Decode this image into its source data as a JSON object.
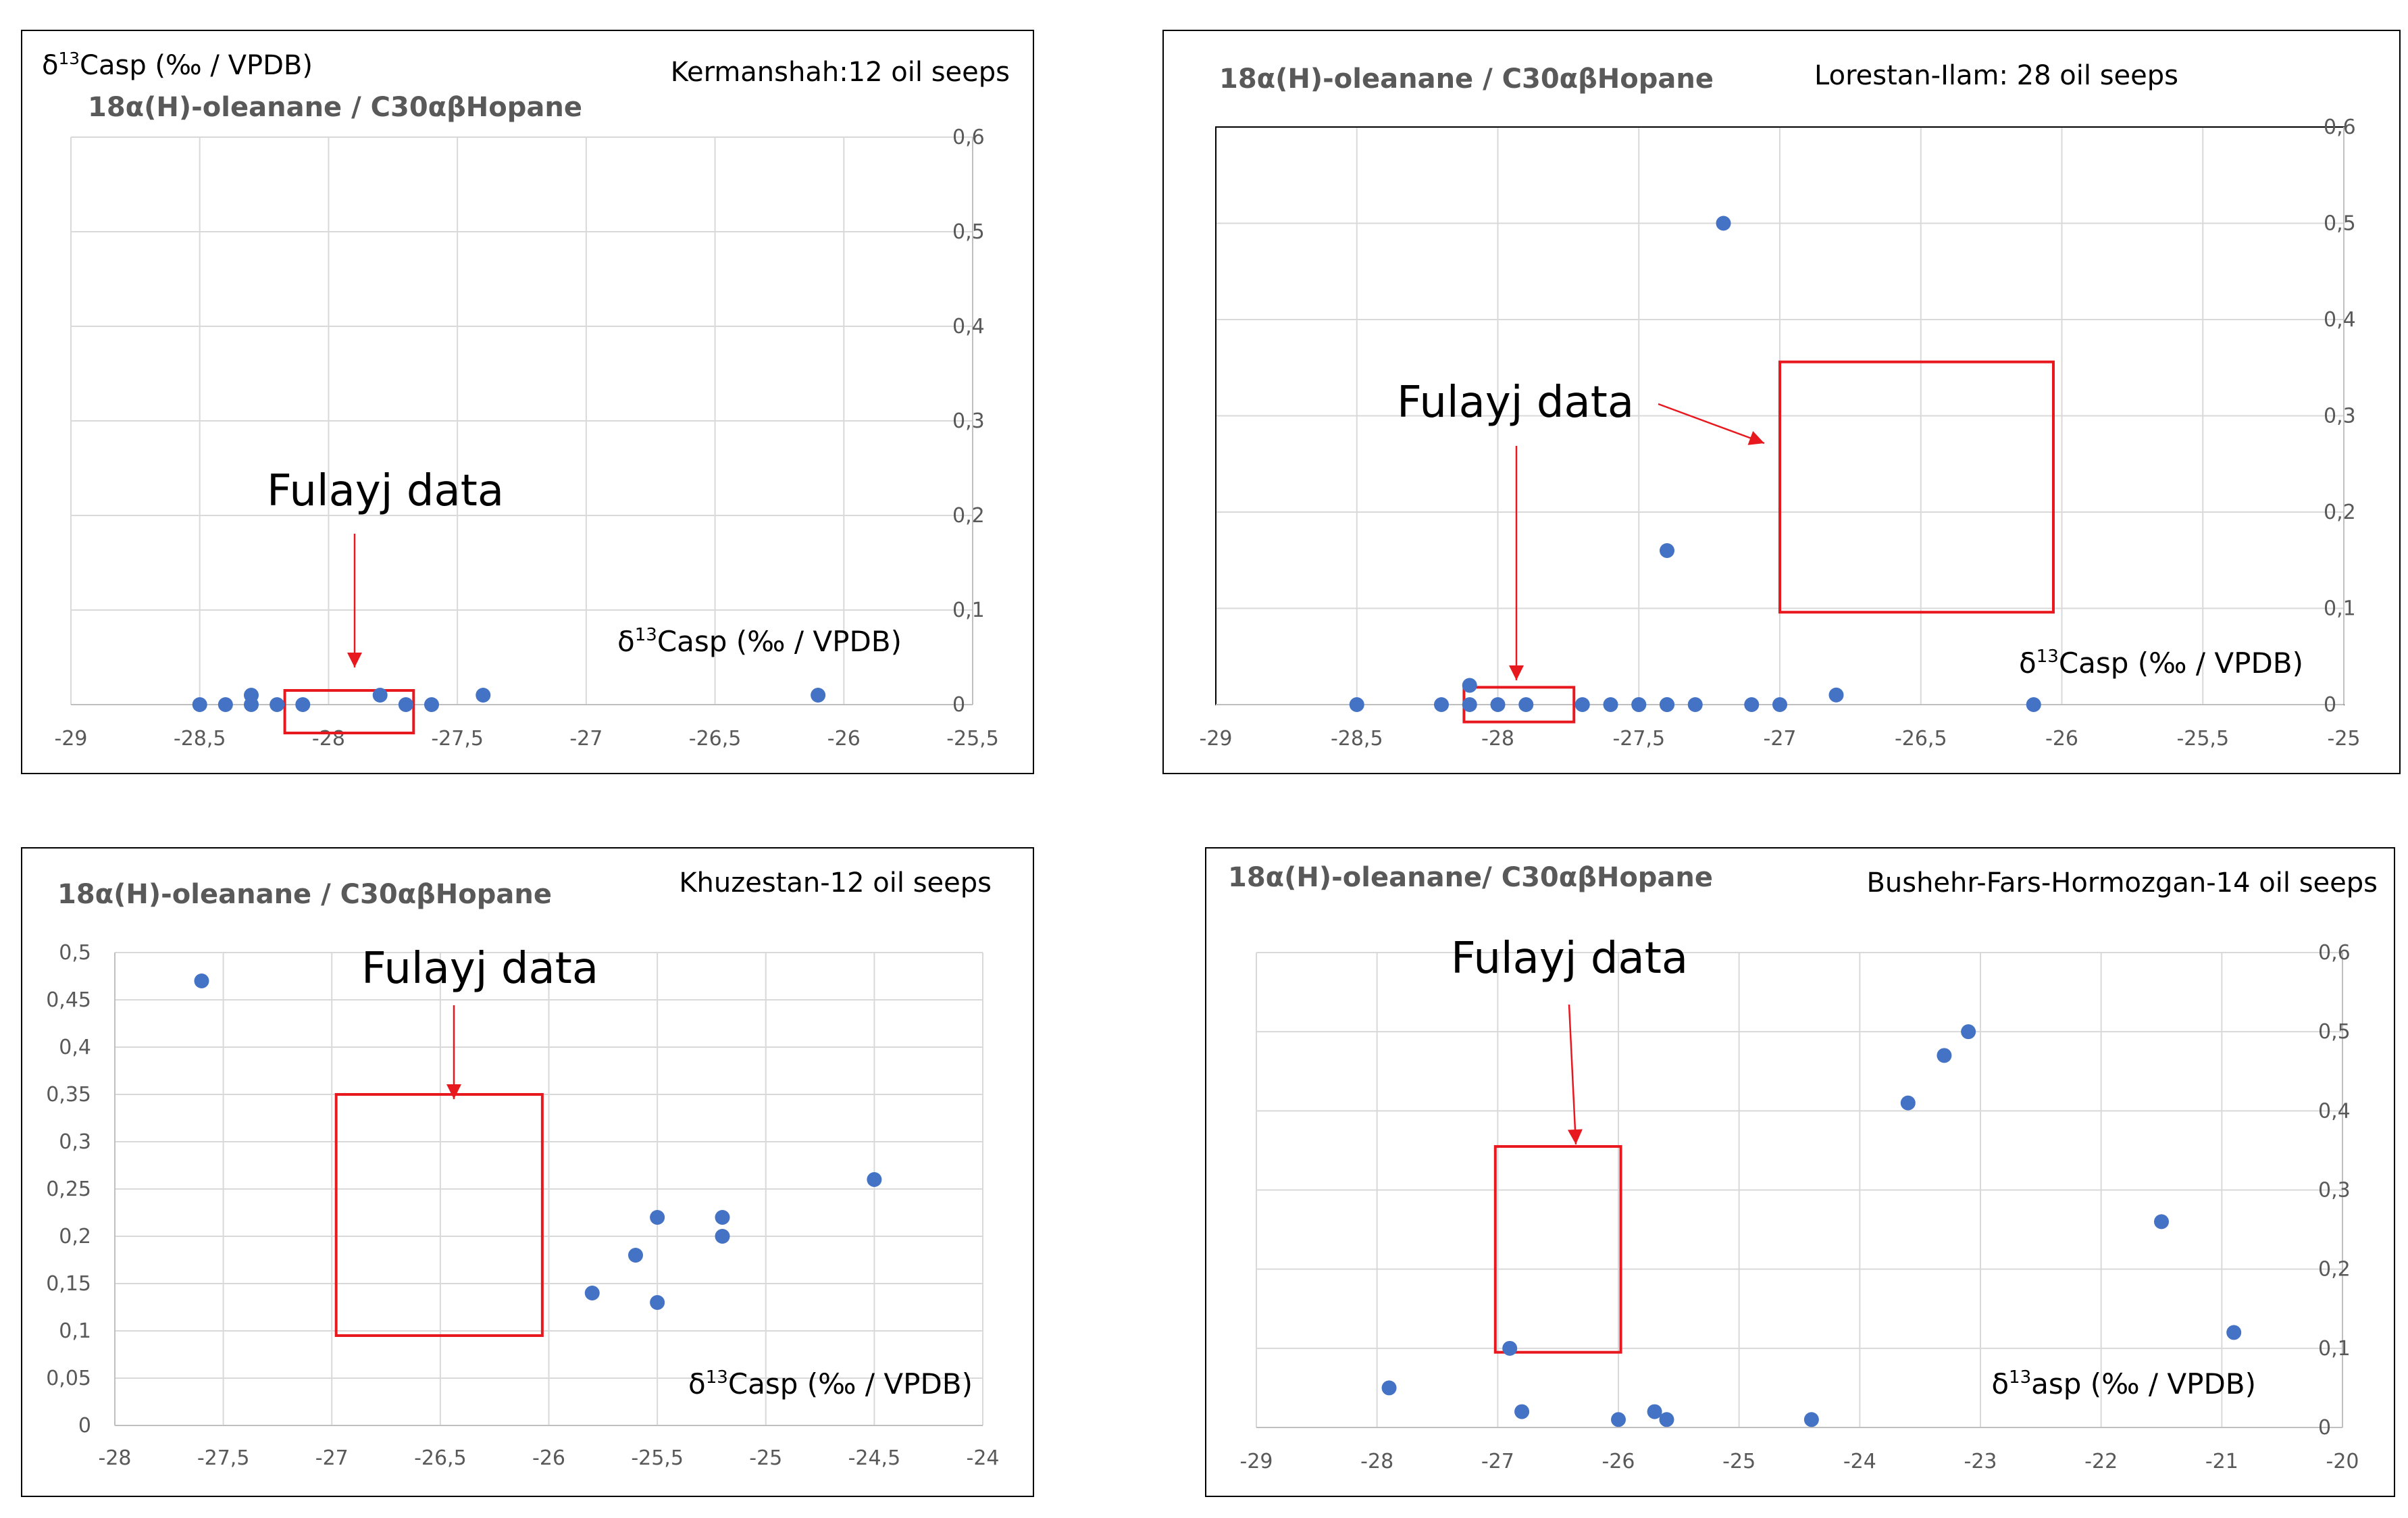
{
  "colors": {
    "point": "#4472c4",
    "highlight": "#e8181f",
    "grid": "#d9d9d9",
    "axis": "#000000",
    "frame": "#000000"
  },
  "chart_data": [
    {
      "type": "scatter",
      "title": "18α(H)-oleanane / C30αβHopane",
      "region": "Kermanshah:12 oil seeps",
      "top_label": "δ13Casp (‰ / VPDB)",
      "xlabel": "δ13Casp (‰ / VPDB)",
      "annotation": "Fulayj data",
      "xlim": [
        -29,
        -25.5
      ],
      "ylim": [
        0,
        0.6
      ],
      "xticks": [
        -29,
        -28.5,
        -28,
        -27.5,
        -27,
        -26.5,
        -26,
        -25.5
      ],
      "xtick_labels": [
        "-29",
        "-28,5",
        "-28",
        "-27,5",
        "-27",
        "-26,5",
        "-26",
        "-25,5"
      ],
      "yticks": [
        0,
        0.1,
        0.2,
        0.3,
        0.4,
        0.5,
        0.6
      ],
      "ytick_labels": [
        "0",
        "0,1",
        "0,2",
        "0,3",
        "0,4",
        "0,5",
        "0,6"
      ],
      "highlight_box": {
        "x": [
          -28.17,
          -27.67
        ],
        "y": [
          -0.03,
          0.015
        ]
      },
      "x": [
        -28.5,
        -28.4,
        -28.3,
        -28.3,
        -28.2,
        -28.1,
        -27.8,
        -27.7,
        -27.6,
        -27.4,
        -26.1
      ],
      "y": [
        0,
        0,
        0,
        0.01,
        0,
        0,
        0.01,
        0,
        0,
        0.01,
        0.01
      ]
    },
    {
      "type": "scatter",
      "title": "18α(H)-oleanane / C30αβHopane",
      "region": "Lorestan-Ilam: 28 oil seeps",
      "xlabel": "δ13Casp (‰ / VPDB)",
      "annotation": "Fulayj data",
      "xlim": [
        -29,
        -25
      ],
      "ylim": [
        0,
        0.6
      ],
      "xticks": [
        -29,
        -28.5,
        -28,
        -27.5,
        -27,
        -26.5,
        -26,
        -25.5,
        -25
      ],
      "xtick_labels": [
        "-29",
        "-28,5",
        "-28",
        "-27,5",
        "-27",
        "-26,5",
        "-26",
        "-25,5",
        "-25"
      ],
      "yticks": [
        0,
        0.1,
        0.2,
        0.3,
        0.4,
        0.5,
        0.6
      ],
      "ytick_labels": [
        "0",
        "0,1",
        "0,2",
        "0,3",
        "0,4",
        "0,5",
        "0,6"
      ],
      "highlight_box": {
        "x": [
          -28.12,
          -27.73
        ],
        "y": [
          -0.018,
          0.018
        ]
      },
      "highlight_box2": {
        "x": [
          -27.0,
          -26.03
        ],
        "y": [
          0.096,
          0.356
        ]
      },
      "x": [
        -28.5,
        -28.2,
        -28.1,
        -28.1,
        -28.0,
        -27.9,
        -27.7,
        -27.6,
        -27.5,
        -27.5,
        -27.4,
        -27.4,
        -27.3,
        -27.2,
        -27.1,
        -27.0,
        -26.8,
        -26.1,
        -27.4
      ],
      "y": [
        0,
        0,
        0.02,
        0,
        0,
        0,
        0,
        0,
        0,
        0,
        0,
        0,
        0,
        0.5,
        0,
        0,
        0.01,
        0,
        0.16
      ]
    },
    {
      "type": "scatter",
      "title": "18α(H)-oleanane / C30αβHopane",
      "region": "Khuzestan-12 oil seeps",
      "xlabel": "δ13Casp (‰ / VPDB)",
      "annotation": "Fulayj data",
      "xlim": [
        -28,
        -24
      ],
      "ylim": [
        0,
        0.5
      ],
      "xticks": [
        -28,
        -27.5,
        -27,
        -26.5,
        -26,
        -25.5,
        -25,
        -24.5,
        -24
      ],
      "xtick_labels": [
        "-28",
        "-27,5",
        "-27",
        "-26,5",
        "-26",
        "-25,5",
        "-25",
        "-24,5",
        "-24"
      ],
      "yticks": [
        0,
        0.05,
        0.1,
        0.15,
        0.2,
        0.25,
        0.3,
        0.35,
        0.4,
        0.45,
        0.5
      ],
      "ytick_labels": [
        "0",
        "0,05",
        "0,1",
        "0,15",
        "0,2",
        "0,25",
        "0,3",
        "0,35",
        "0,4",
        "0,45",
        "0,5"
      ],
      "highlight_box": {
        "x": [
          -26.98,
          -26.03
        ],
        "y": [
          0.095,
          0.35
        ]
      },
      "x": [
        -27.6,
        -25.8,
        -25.6,
        -25.5,
        -25.5,
        -25.2,
        -25.2,
        -24.5
      ],
      "y": [
        0.47,
        0.14,
        0.18,
        0.22,
        0.13,
        0.22,
        0.2,
        0.26
      ]
    },
    {
      "type": "scatter",
      "title": "18α(H)-oleanane/ C30αβHopane",
      "region": "Bushehr-Fars-Hormozgan-14 oil seeps",
      "xlabel": "δ13asp (‰ / VPDB)",
      "annotation": "Fulayj data",
      "xlim": [
        -29,
        -20
      ],
      "ylim": [
        0,
        0.6
      ],
      "xticks": [
        -29,
        -28,
        -27,
        -26,
        -25,
        -24,
        -23,
        -22,
        -21,
        -20
      ],
      "xtick_labels": [
        "-29",
        "-28",
        "-27",
        "-26",
        "-25",
        "-24",
        "-23",
        "-22",
        "-21",
        "-20"
      ],
      "yticks": [
        0,
        0.1,
        0.2,
        0.3,
        0.4,
        0.5,
        0.6
      ],
      "ytick_labels": [
        "0",
        "0,1",
        "0,2",
        "0,3",
        "0,4",
        "0,5",
        "0,6"
      ],
      "highlight_box": {
        "x": [
          -27.02,
          -25.98
        ],
        "y": [
          0.095,
          0.355
        ]
      },
      "x": [
        -27.9,
        -26.9,
        -26.8,
        -26.0,
        -25.7,
        -25.6,
        -24.4,
        -23.6,
        -23.3,
        -23.1,
        -21.5,
        -20.9
      ],
      "y": [
        0.05,
        0.1,
        0.02,
        0.01,
        0.02,
        0.01,
        0.01,
        0.41,
        0.47,
        0.5,
        0.26,
        0.12
      ]
    }
  ]
}
